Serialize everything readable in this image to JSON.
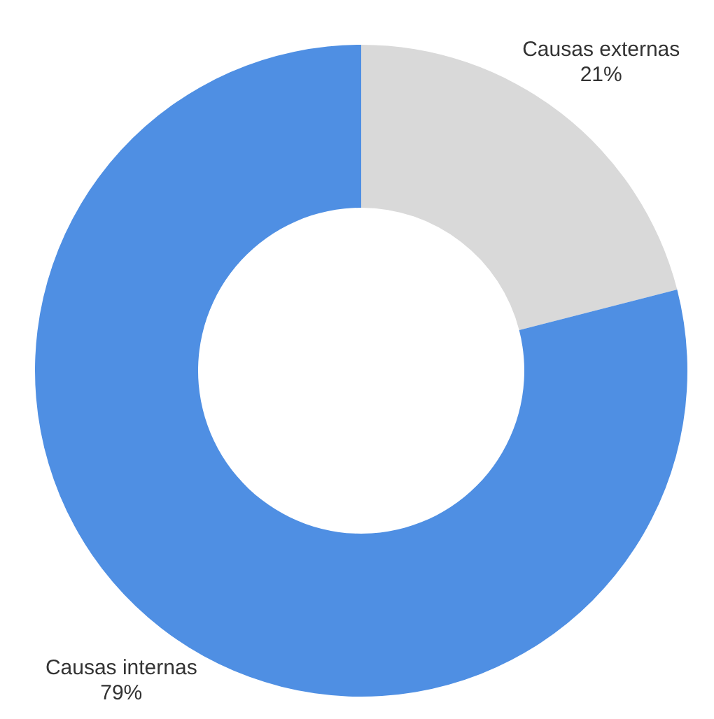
{
  "chart_data": {
    "type": "donut",
    "categories": [
      "Causas externas",
      "Causas internas"
    ],
    "values": [
      21,
      79
    ],
    "colors": [
      "#d9d9d9",
      "#4f8fe3"
    ],
    "value_labels": [
      "21%",
      "79%"
    ]
  }
}
